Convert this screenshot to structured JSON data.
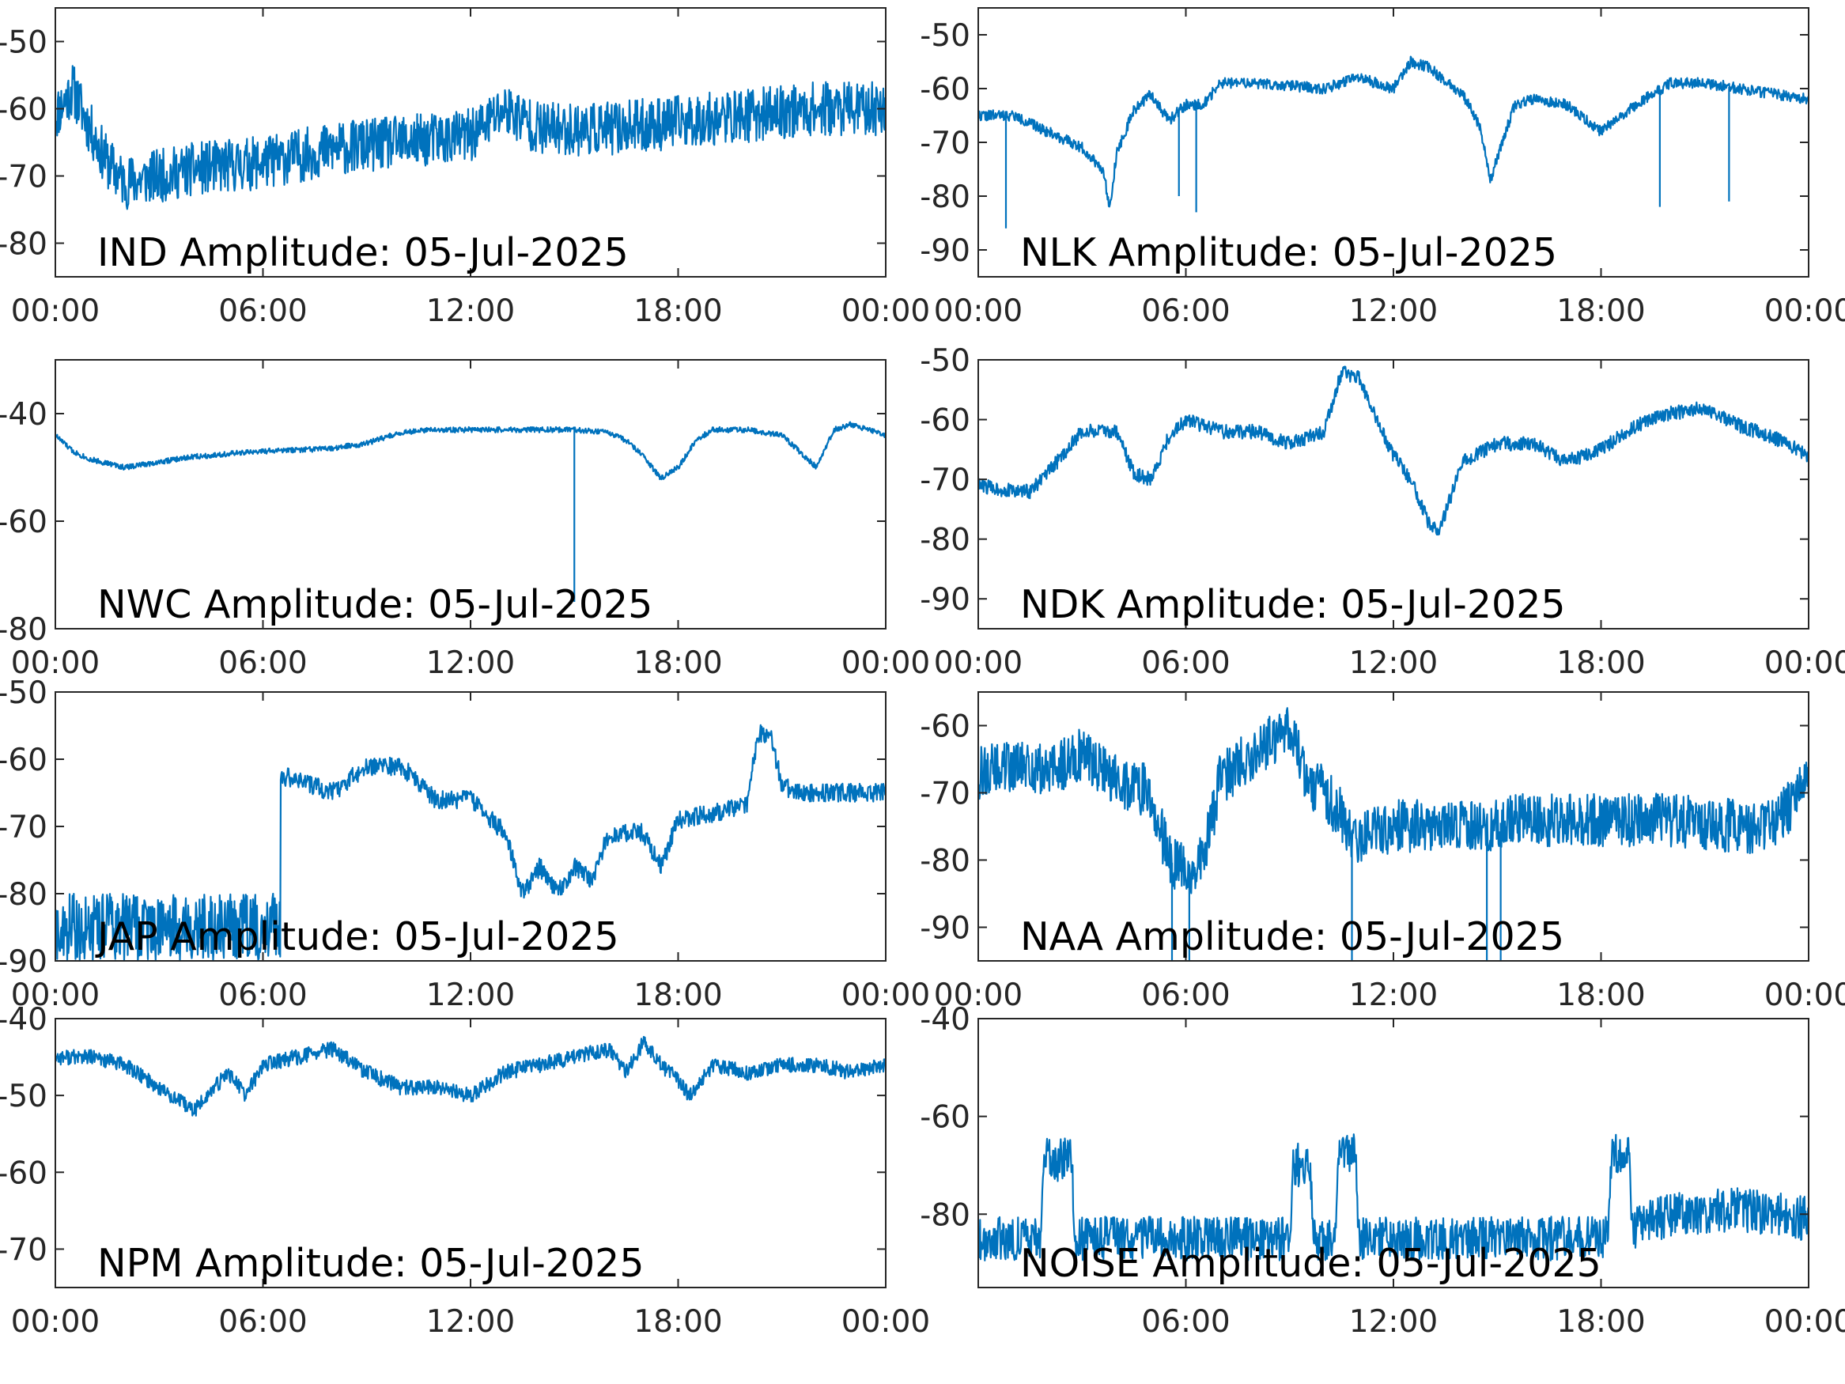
{
  "figure": {
    "accent_color": "#0072BD"
  },
  "chart_data": [
    {
      "type": "line",
      "title": "IND Amplitude: 05-Jul-2025",
      "xlabel": "",
      "ylabel": "",
      "xlim": [
        0,
        24
      ],
      "ylim": [
        -85,
        -45
      ],
      "x_ticks": [
        0,
        6,
        12,
        18,
        24
      ],
      "x_tick_labels": [
        "00:00",
        "06:00",
        "12:00",
        "18:00",
        "00:00"
      ],
      "y_ticks": [
        -50,
        -60,
        -70,
        -80
      ],
      "y_tick_labels": [
        "-50",
        "-60",
        "-70",
        "-80"
      ],
      "grid": false,
      "legend": "none",
      "noise": 4.0,
      "seed": 11,
      "series": [
        {
          "x": [
            0,
            0.5,
            1,
            1.5,
            2,
            3,
            4,
            6,
            8,
            10,
            12,
            13,
            14,
            16,
            18,
            20,
            22,
            24
          ],
          "values": [
            -61,
            -57,
            -63,
            -68,
            -71,
            -70,
            -69,
            -68,
            -66,
            -65,
            -64,
            -60,
            -63,
            -63,
            -62,
            -61,
            -60,
            -60
          ]
        }
      ]
    },
    {
      "type": "line",
      "title": "NLK Amplitude: 05-Jul-2025",
      "xlabel": "",
      "ylabel": "",
      "xlim": [
        0,
        24
      ],
      "ylim": [
        -95,
        -45
      ],
      "x_ticks": [
        0,
        6,
        12,
        18,
        24
      ],
      "x_tick_labels": [
        "00:00",
        "06:00",
        "12:00",
        "18:00",
        "00:00"
      ],
      "y_ticks": [
        -50,
        -60,
        -70,
        -80,
        -90
      ],
      "y_tick_labels": [
        "-50",
        "-60",
        "-70",
        "-80",
        "-90"
      ],
      "grid": false,
      "legend": "none",
      "noise": 1.0,
      "seed": 22,
      "series": [
        {
          "x": [
            0,
            1,
            2,
            3,
            3.6,
            3.8,
            4,
            4.5,
            5,
            5.5,
            6,
            6.5,
            7,
            8,
            10,
            11,
            12,
            12.5,
            13,
            14,
            14.5,
            14.8,
            15.5,
            16,
            17,
            18,
            19,
            20,
            21,
            22,
            23,
            24
          ],
          "values": [
            -65,
            -65,
            -68,
            -71,
            -75,
            -82,
            -72,
            -64,
            -61,
            -66,
            -63,
            -63,
            -59,
            -59,
            -60,
            -58,
            -60,
            -55,
            -56,
            -61,
            -67,
            -77,
            -63,
            -62,
            -63,
            -68,
            -63,
            -59,
            -59,
            -60,
            -61,
            -62
          ]
        }
      ],
      "spikes": [
        {
          "x": 0.8,
          "value": -86
        },
        {
          "x": 5.8,
          "value": -80
        },
        {
          "x": 6.3,
          "value": -83
        },
        {
          "x": 19.7,
          "value": -82
        },
        {
          "x": 21.7,
          "value": -81
        }
      ]
    },
    {
      "type": "line",
      "title": "NWC Amplitude: 05-Jul-2025",
      "xlabel": "",
      "ylabel": "",
      "xlim": [
        0,
        24
      ],
      "ylim": [
        -80,
        -30
      ],
      "x_ticks": [
        0,
        6,
        12,
        18,
        24
      ],
      "x_tick_labels": [
        "00:00",
        "06:00",
        "12:00",
        "18:00",
        "00:00"
      ],
      "y_ticks": [
        -40,
        -60,
        -80
      ],
      "y_tick_labels": [
        "-40",
        "-60",
        "-80"
      ],
      "grid": false,
      "legend": "none",
      "noise": 0.5,
      "seed": 33,
      "series": [
        {
          "x": [
            0,
            0.5,
            1,
            2,
            3,
            4,
            5,
            6,
            8,
            9,
            10,
            11,
            12,
            13,
            14,
            15,
            16,
            16.5,
            17,
            17.5,
            18,
            18.5,
            19,
            20,
            21,
            21.5,
            22,
            22.5,
            23,
            24
          ],
          "values": [
            -44,
            -47,
            -48.5,
            -50,
            -49,
            -48,
            -47.5,
            -47,
            -46.5,
            -45.5,
            -43.5,
            -43,
            -43,
            -43,
            -43,
            -43,
            -43.5,
            -45,
            -48,
            -52,
            -50,
            -45,
            -43,
            -43,
            -44,
            -47,
            -50,
            -43,
            -42,
            -44
          ]
        }
      ],
      "spikes": [
        {
          "x": 15.0,
          "value": -75
        }
      ]
    },
    {
      "type": "line",
      "title": "NDK Amplitude: 05-Jul-2025",
      "xlabel": "",
      "ylabel": "",
      "xlim": [
        0,
        24
      ],
      "ylim": [
        -95,
        -50
      ],
      "x_ticks": [
        0,
        6,
        12,
        18,
        24
      ],
      "x_tick_labels": [
        "00:00",
        "06:00",
        "12:00",
        "18:00",
        "00:00"
      ],
      "y_ticks": [
        -50,
        -60,
        -70,
        -80,
        -90
      ],
      "y_tick_labels": [
        "-50",
        "-60",
        "-70",
        "-80",
        "-90"
      ],
      "grid": false,
      "legend": "none",
      "noise": 1.2,
      "seed": 44,
      "series": [
        {
          "x": [
            0,
            1,
            1.5,
            2,
            3,
            4,
            4.5,
            5,
            5.5,
            6,
            6.5,
            7,
            8,
            9,
            10,
            10.5,
            11,
            11.5,
            12,
            12.5,
            13,
            13.3,
            14,
            15,
            16,
            17,
            18,
            19,
            20,
            21,
            22,
            23,
            24
          ],
          "values": [
            -71,
            -72,
            -72,
            -69,
            -62,
            -62,
            -69,
            -70,
            -63,
            -60,
            -61,
            -62,
            -62,
            -64,
            -62,
            -52,
            -53,
            -60,
            -66,
            -70,
            -77,
            -79,
            -67,
            -64,
            -64,
            -67,
            -65,
            -61,
            -59,
            -58,
            -61,
            -63,
            -66
          ]
        }
      ]
    },
    {
      "type": "line",
      "title": "JAP Amplitude: 05-Jul-2025",
      "xlabel": "",
      "ylabel": "",
      "xlim": [
        0,
        24
      ],
      "ylim": [
        -90,
        -50
      ],
      "x_ticks": [
        0,
        6,
        12,
        18,
        24
      ],
      "x_tick_labels": [
        "00:00",
        "06:00",
        "12:00",
        "18:00",
        "00:00"
      ],
      "y_ticks": [
        -50,
        -60,
        -70,
        -80,
        -90
      ],
      "y_tick_labels": [
        "-50",
        "-60",
        "-70",
        "-80",
        "-90"
      ],
      "grid": false,
      "legend": "none",
      "noise": 1.4,
      "seed": 55,
      "series": [
        {
          "x": [
            0,
            1,
            2,
            3,
            4,
            5,
            6,
            6.5,
            7,
            8,
            9,
            10,
            11,
            12,
            13,
            13.5,
            14,
            14.5,
            15,
            15.5,
            16,
            17,
            17.5,
            18,
            19,
            20,
            20.3,
            20.7,
            21,
            21.5,
            22,
            23,
            24
          ],
          "values": [
            -85,
            -84,
            -82,
            -80,
            -82,
            -82,
            -82,
            -62.5,
            -63,
            -65,
            -61,
            -61,
            -66,
            -66,
            -71,
            -80,
            -76,
            -80,
            -76,
            -78,
            -71,
            -71,
            -76,
            -69,
            -68,
            -67,
            -56,
            -57,
            -64,
            -65,
            -65,
            -65,
            -65
          ]
        }
      ],
      "bands": [
        {
          "x0": 0,
          "x1": 6.5,
          "y_low": -90,
          "y_high": -80
        }
      ]
    },
    {
      "type": "line",
      "title": "NAA Amplitude: 05-Jul-2025",
      "xlabel": "",
      "ylabel": "",
      "xlim": [
        0,
        24
      ],
      "ylim": [
        -95,
        -55
      ],
      "x_ticks": [
        0,
        6,
        12,
        18,
        24
      ],
      "x_tick_labels": [
        "00:00",
        "06:00",
        "12:00",
        "18:00",
        "00:00"
      ],
      "y_ticks": [
        -60,
        -70,
        -80,
        -90
      ],
      "y_tick_labels": [
        "-60",
        "-70",
        "-80",
        "-90"
      ],
      "grid": false,
      "legend": "none",
      "noise": 4.0,
      "seed": 66,
      "series": [
        {
          "x": [
            0,
            1,
            2,
            3,
            4,
            5,
            5.5,
            6,
            6.5,
            7,
            8,
            8.5,
            9,
            9.5,
            10,
            11,
            12,
            14,
            16,
            18,
            20,
            22,
            23,
            24
          ],
          "values": [
            -67,
            -66,
            -67,
            -64,
            -68,
            -70,
            -80,
            -82,
            -80,
            -68,
            -64,
            -62,
            -60,
            -68,
            -70,
            -77,
            -75,
            -75,
            -74,
            -74,
            -74,
            -75,
            -75,
            -68
          ]
        }
      ],
      "spikes": [
        {
          "x": 5.6,
          "value": -95
        },
        {
          "x": 6.1,
          "value": -95
        },
        {
          "x": 10.8,
          "value": -95
        },
        {
          "x": 14.7,
          "value": -95
        },
        {
          "x": 15.1,
          "value": -95
        }
      ]
    },
    {
      "type": "line",
      "title": "NPM Amplitude: 05-Jul-2025",
      "xlabel": "",
      "ylabel": "",
      "xlim": [
        0,
        24
      ],
      "ylim": [
        -75,
        -40
      ],
      "x_ticks": [
        0,
        6,
        12,
        18,
        24
      ],
      "x_tick_labels": [
        "00:00",
        "06:00",
        "12:00",
        "18:00",
        "00:00"
      ],
      "y_ticks": [
        -40,
        -50,
        -60,
        -70
      ],
      "y_tick_labels": [
        "-40",
        "-50",
        "-60",
        "-70"
      ],
      "grid": false,
      "legend": "none",
      "noise": 1.0,
      "seed": 77,
      "series": [
        {
          "x": [
            0,
            1,
            2,
            3,
            4,
            5,
            5.5,
            6,
            7,
            8,
            9,
            10,
            11,
            12,
            13,
            14,
            15,
            16,
            16.5,
            17,
            17.5,
            18,
            18.3,
            19,
            20,
            21,
            22,
            23,
            24
          ],
          "values": [
            -45,
            -45,
            -46,
            -49,
            -52,
            -47,
            -50,
            -46,
            -45,
            -44,
            -47,
            -49,
            -49,
            -50,
            -47,
            -46,
            -45,
            -44,
            -47,
            -43,
            -46,
            -48,
            -50,
            -46,
            -47,
            -46,
            -46,
            -47,
            -46
          ]
        }
      ]
    },
    {
      "type": "line",
      "title": "NOISE Amplitude: 05-Jul-2025",
      "xlabel": "",
      "ylabel": "",
      "xlim": [
        0,
        24
      ],
      "ylim": [
        -95,
        -40
      ],
      "x_ticks": [
        0,
        6,
        12,
        18,
        24
      ],
      "x_tick_labels": [
        "",
        "06:00",
        "12:00",
        "18:00",
        "00:00"
      ],
      "y_ticks": [
        -40,
        -60,
        -80
      ],
      "y_tick_labels": [
        "-40",
        "-60",
        "-80"
      ],
      "grid": false,
      "legend": "none",
      "noise": 4.5,
      "seed": 88,
      "series": [
        {
          "x": [
            0,
            1.8,
            1.9,
            2.7,
            2.8,
            9.0,
            9.1,
            9.6,
            9.7,
            10.3,
            10.4,
            10.9,
            11.0,
            18.2,
            18.3,
            18.8,
            18.9,
            20,
            22,
            24
          ],
          "values": [
            -85,
            -85,
            -69,
            -69,
            -85,
            -85,
            -70,
            -70,
            -85,
            -85,
            -67,
            -67,
            -85,
            -85,
            -68,
            -68,
            -83,
            -80,
            -79,
            -81
          ]
        }
      ]
    }
  ]
}
